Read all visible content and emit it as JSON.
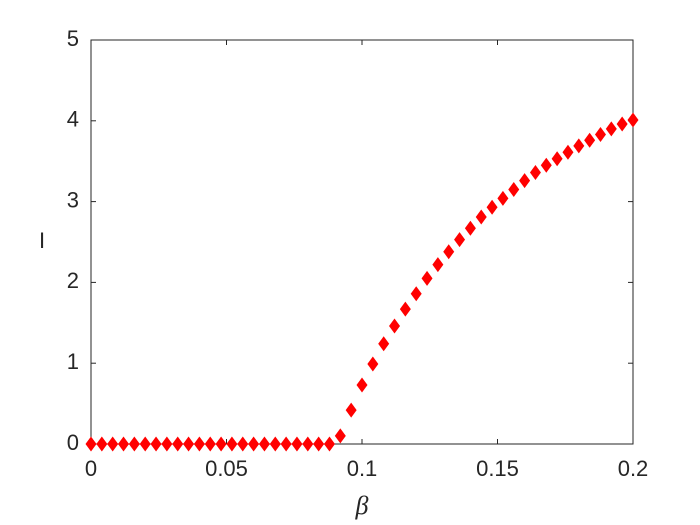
{
  "chart_data": {
    "type": "scatter",
    "xlabel": "β",
    "ylabel": "I",
    "color": "#ff0000",
    "marker": "diamond",
    "x": [
      0,
      0.004,
      0.008,
      0.012,
      0.016,
      0.02,
      0.024,
      0.028,
      0.032,
      0.036,
      0.04,
      0.044,
      0.048,
      0.052,
      0.056,
      0.06,
      0.064,
      0.068,
      0.072,
      0.076,
      0.08,
      0.084,
      0.088,
      0.092,
      0.096,
      0.1,
      0.104,
      0.108,
      0.112,
      0.116,
      0.12,
      0.124,
      0.128,
      0.132,
      0.136,
      0.14,
      0.144,
      0.148,
      0.152,
      0.156,
      0.16,
      0.164,
      0.168,
      0.172,
      0.176,
      0.18,
      0.184,
      0.188,
      0.192,
      0.196,
      0.2
    ],
    "values": [
      0,
      0,
      0,
      0,
      0,
      0,
      0,
      0,
      0,
      0,
      0,
      0,
      0,
      0,
      0,
      0,
      0,
      0,
      0,
      0,
      0,
      0,
      0,
      0.1,
      0.42,
      0.73,
      0.99,
      1.24,
      1.46,
      1.67,
      1.86,
      2.05,
      2.22,
      2.38,
      2.53,
      2.67,
      2.81,
      2.93,
      3.04,
      3.15,
      3.26,
      3.36,
      3.45,
      3.53,
      3.61,
      3.69,
      3.76,
      3.83,
      3.9,
      3.96,
      4.01
    ],
    "xlim": [
      0,
      0.2
    ],
    "ylim": [
      0,
      5
    ],
    "xticks": [
      0,
      0.05,
      0.1,
      0.15,
      0.2
    ],
    "yticks": [
      0,
      1,
      2,
      3,
      4,
      5
    ],
    "grid": false
  }
}
